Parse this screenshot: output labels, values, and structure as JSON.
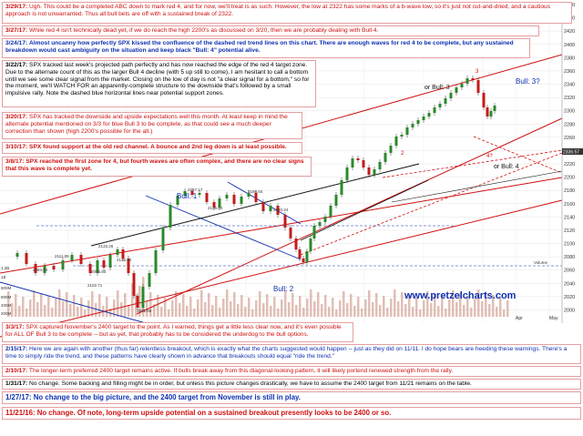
{
  "chart_data": {
    "type": "candlestick",
    "ylim": [
      1980,
      2460
    ],
    "y_ticks": [
      2000,
      2020,
      2040,
      2060,
      2080,
      2100,
      2120,
      2140,
      2160,
      2180,
      2200,
      2220,
      2240,
      2260,
      2280,
      2300,
      2320,
      2340,
      2360,
      2380,
      2400,
      2420,
      2440,
      2460
    ],
    "x_ticks": [
      "Apr",
      "May"
    ],
    "last_price_label": "2336.57",
    "volume_labels": [
      "1.2B",
      "1B",
      "800M",
      "600M",
      "400M",
      "200M"
    ],
    "volume_axis_label": "Volume",
    "watermark": "www.pretzelcharts.com",
    "price_markers": [
      "2084.00",
      "2111.05",
      "2133.26",
      "2135.60",
      "2055.80",
      "2102.71",
      "2157.17",
      "2126.04",
      "2166.04",
      "2120.24",
      "1991.66"
    ],
    "wave_labels": [
      {
        "text": "Bull: 1",
        "color": "#1030b0"
      },
      {
        "text": "Bull: 2",
        "color": "#1030b0"
      },
      {
        "text": "Bull: 3?",
        "color": "#1030b0"
      },
      {
        "text": "or Bull: 3",
        "color": "#111111"
      },
      {
        "text": "or Bull: 4",
        "color": "#111111"
      },
      {
        "text": "4?",
        "color": "#d01010"
      },
      {
        "text": "3",
        "color": "#d01010"
      },
      {
        "text": "2",
        "color": "#d01010"
      }
    ]
  },
  "notes": [
    {
      "date": "3/29/17:",
      "text": "Ugh.  This could be a completed ABC down to mark red 4, and for now, we'll treat is as such.  However, the low at 2322 has some marks of a b-wave low, so it's just not cut-and-dried, and a cautious approach is not unwarranted.  Thus all bull bets are off with a sustained break of 2322."
    },
    {
      "date": "3/27/17:",
      "text": "While red 4 isn't technically dead yet, if we do reach the high 2200's as discussed on 3/20, then we are probably dealing with Bull 4."
    },
    {
      "date": "3/24/17:",
      "text": "Almost uncanny how perfectly SPX kissed the confluence of the dashed red trend lines on this chart.  There are enough waves for red 4 to be complete, but any sustained breakdown would cast ambiguity on the situation and keep black \"Bull: 4\" potential alive."
    },
    {
      "date": "3/22/17:",
      "text": "SPX tracked last week's projected path perfectly and has now reached the edge of the red 4 target zone.  Due to the alternate count of this as the larger Bull 4 decline (with 5 up still to come), I am hesitant to call a bottom until we see some clear signal from the market.  Closing on the low of day is not \"a clear signal for a bottom,\" so for the moment, we'll WATCH FOR an apparently-complete structure to the downside that's followed by a small impulsive rally.  Note the dashed blue horizontal lines near potential support zones."
    },
    {
      "date": "3/20/17:",
      "text": "SPX has tracked the downside and upside expectations well this month.  At least keep in mind the alternate potential mentioned on 3/3 for blue Bull 3 to be complete, as that could see a much deeper correction than shown (high 2200's possible for the alt.)"
    },
    {
      "date": "3/10/17:",
      "text": "SPX found support at the old red channel.  A bounce and 2nd leg down is at least possible."
    },
    {
      "date": "3/8/17:",
      "text": "SPX reached the first zone for 4, but fourth waves are often complex, and there are no clear signs that this wave is complete yet."
    },
    {
      "date": "3/3/17:",
      "text": "SPX captured November's 2400 target to the point.  As I warned, things get a little less clear now, and it's even possible for ALL OF Bull 3 to be complete -- but as yet, that probably has to be considered the underdog to the bull options."
    },
    {
      "date": "2/15/17:",
      "text": "Here we are again with another (thus far) relentless breakout, which is exactly what the charts suggested would happen -- just as they did on 11/11.  I do hope bears are heeding these warnings.  There's a time to simply ride the trend, and these patterns have clearly shown in advance that breakouts should equal \"ride the trend.\""
    },
    {
      "date": "2/10/17:",
      "text": "The longer-term preferred 2400 target remains active.  If bulls break away from this diagonal-looking pattern, it will likely portend renewed strength from the rally."
    },
    {
      "date": "1/31/17:",
      "text": "No change.  Some backing and filling might be in order, but unless this picture changes drastically, we have to assume the 2400 target from 11/21 remains on the table."
    },
    {
      "date": "1/27/17:",
      "text": "No change to the big picture, and the 2400 target from November is still in play."
    },
    {
      "date": "11/21/16:",
      "text": "No change.  Of note, long-term upside potential on a sustained breakout presently looks to be 2400 or so."
    }
  ]
}
